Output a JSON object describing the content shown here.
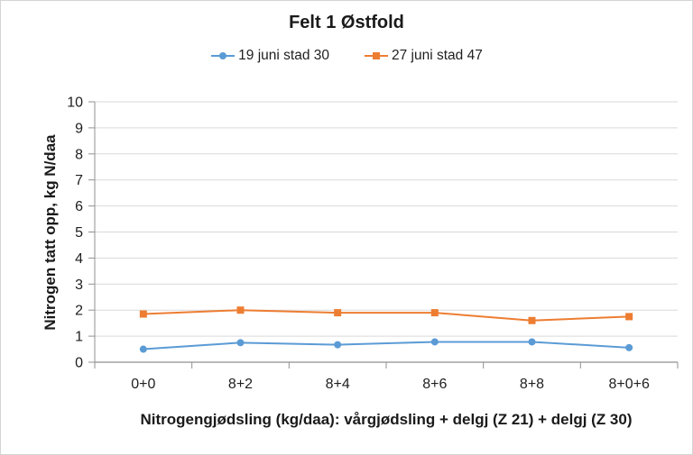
{
  "frame": {
    "background": "#FFFFFF",
    "border_color": "#D5D5D5"
  },
  "chart_data": {
    "type": "line",
    "title": "Felt 1 Østfold",
    "categories": [
      "0+0",
      "8+2",
      "8+4",
      "8+6",
      "8+8",
      "8+0+6"
    ],
    "series": [
      {
        "name": "19 juni stad 30",
        "marker": "circle",
        "color": "#5B9BD5",
        "values": [
          0.5,
          0.75,
          0.67,
          0.78,
          0.78,
          0.56
        ]
      },
      {
        "name": "27 juni stad 47",
        "marker": "square",
        "color": "#ED7D31",
        "values": [
          1.85,
          2.0,
          1.9,
          1.9,
          1.6,
          1.75
        ]
      }
    ],
    "xlabel": "Nitrogengjødsling (kg/daa): vårgjødsling + delgj (Z 21) + delgj (Z 30)",
    "ylabel": "Nitrogen tatt opp, kg N/daa",
    "ylim": [
      0,
      10
    ],
    "ytick_step": 1,
    "grid": "horizontal",
    "legend_position": "top",
    "colors": {
      "gridline": "#D9D9D9",
      "axis": "#919191",
      "tick_text": "#1F1F1F"
    }
  }
}
